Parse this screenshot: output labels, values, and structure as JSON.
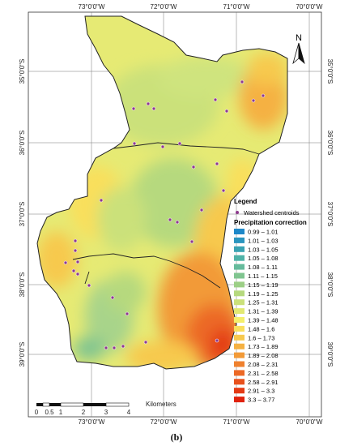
{
  "figure": {
    "caption": "(b)"
  },
  "axes": {
    "lon_labels": [
      "73°0'0\"W",
      "72°0'0\"W",
      "71°0'0\"W",
      "70°0'0\"W"
    ],
    "lat_labels": [
      "35°0'0\"S",
      "36°0'0\"S",
      "37°0'0\"S",
      "38°0'0\"S",
      "39°0'0\"S"
    ]
  },
  "north_arrow": {
    "label": "N"
  },
  "legend": {
    "title": "Legend",
    "point_label": "Watershed centroids",
    "ramp_title": "Precipitation correction",
    "classes": [
      {
        "label": "0.99 – 1.01",
        "color": "#1e88c8"
      },
      {
        "label": "1.01 – 1.03",
        "color": "#2b95bf"
      },
      {
        "label": "1.03 – 1.05",
        "color": "#3aa3b3"
      },
      {
        "label": "1.05 – 1.08",
        "color": "#4fb3a8"
      },
      {
        "label": "1.08 – 1.11",
        "color": "#66bb9c"
      },
      {
        "label": "1.11 – 1.15",
        "color": "#80c590"
      },
      {
        "label": "1.15 – 1.19",
        "color": "#9ccf86"
      },
      {
        "label": "1.19 – 1.25",
        "color": "#b6d97e"
      },
      {
        "label": "1.25 – 1.31",
        "color": "#cbe17a"
      },
      {
        "label": "1.31 – 1.39",
        "color": "#e2e972"
      },
      {
        "label": "1.39 – 1.48",
        "color": "#f4ef6b"
      },
      {
        "label": "1.48 – 1.6",
        "color": "#f9df5c"
      },
      {
        "label": "1.6 – 1.73",
        "color": "#f7c94e"
      },
      {
        "label": "1.73 – 1.89",
        "color": "#f5b142"
      },
      {
        "label": "1.89 – 2.08",
        "color": "#f29a38"
      },
      {
        "label": "2.08 – 2.31",
        "color": "#ef812f"
      },
      {
        "label": "2.31 – 2.58",
        "color": "#ec6926"
      },
      {
        "label": "2.58 – 2.91",
        "color": "#e8511d"
      },
      {
        "label": "2.91 – 3.3",
        "color": "#e43a15"
      },
      {
        "label": "3.3 – 3.77",
        "color": "#e0220d"
      }
    ]
  },
  "scale_bar": {
    "unit": "Kilometers",
    "labels": [
      "0",
      "0.5",
      "1",
      "2",
      "3",
      "4"
    ]
  },
  "colors": {
    "point_fill": "#8e3a8e",
    "boundary": "#222222",
    "graticule": "#777777"
  }
}
